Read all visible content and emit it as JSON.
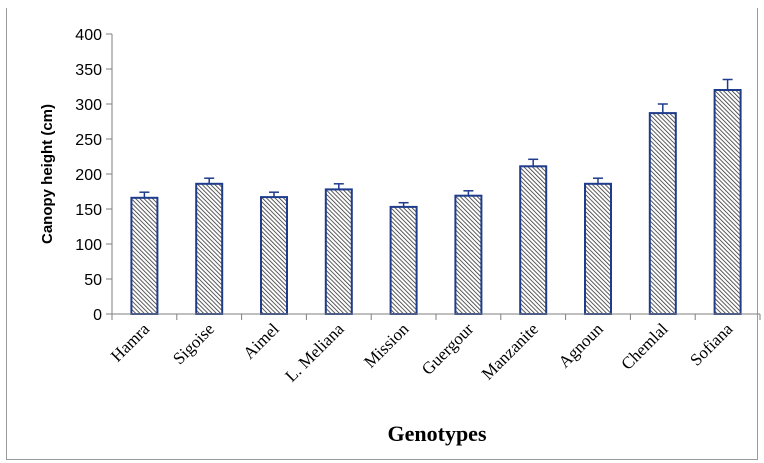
{
  "chart_data": {
    "type": "bar",
    "title": "",
    "xlabel": "Genotypes",
    "ylabel": "Canopy height (cm)",
    "ylim": [
      0,
      400
    ],
    "yticks": [
      0,
      50,
      100,
      150,
      200,
      250,
      300,
      350,
      400
    ],
    "categories": [
      "Hamra",
      "Sigoise",
      "Aimel",
      "L. Meliana",
      "Mission",
      "Guergour",
      "Manzanite",
      "Agnoun",
      "Chemlal",
      "Sofiana"
    ],
    "values": [
      166,
      186,
      167,
      178,
      153,
      169,
      211,
      186,
      287,
      320
    ],
    "error": [
      8,
      8,
      7,
      8,
      6,
      7,
      10,
      8,
      13,
      15
    ],
    "bar_fill": "hatched",
    "bar_border_color": "#1f3c8c",
    "grid": false,
    "legend": "none"
  }
}
